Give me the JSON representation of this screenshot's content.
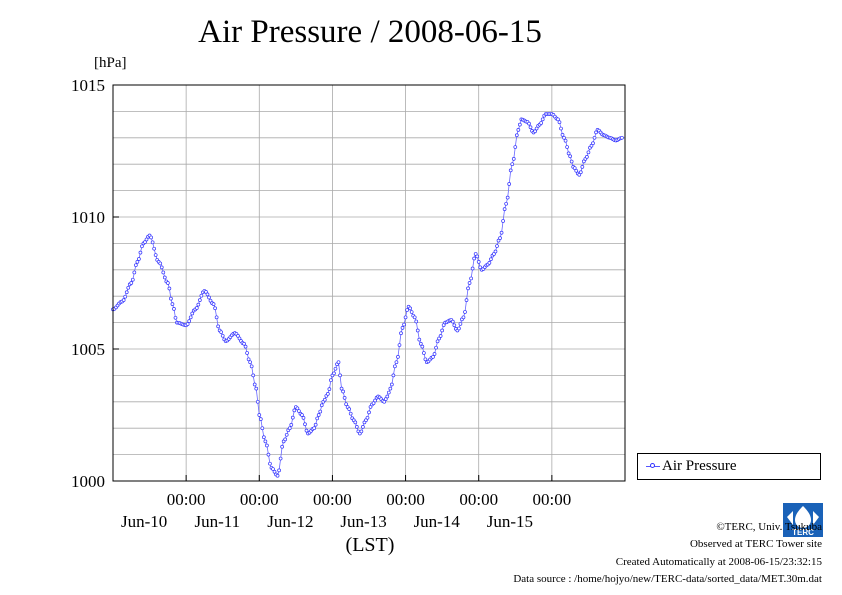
{
  "title": "Air Pressure / 2008-06-15",
  "unit_label": "[hPa]",
  "x_axis_unit": "(LST)",
  "legend": {
    "label": "Air Pressure"
  },
  "colors": {
    "series": "#3333ff",
    "grid": "#aaaaaa"
  },
  "credits": {
    "copyright": "©TERC, Univ. Tsukuba",
    "observed": "Observed at TERC Tower site",
    "created": "Created Automatically at 2008-06-15/23:32:15",
    "source": "Data source : /home/hojyo/new/TERC-data/sorted_data/MET.30m.dat"
  },
  "logo": {
    "text": "TERC",
    "icon": "terc-logo-icon"
  },
  "chart_data": {
    "type": "line",
    "xlabel": "(LST)",
    "ylabel": "[hPa]",
    "ylim": [
      1000,
      1015
    ],
    "yticks": [
      1000,
      1005,
      1010,
      1015
    ],
    "xlim_days": [
      "2008-06-09 00:00",
      "2008-06-15 24:00"
    ],
    "xticks": [
      {
        "time": "00:00",
        "day": "Jun-10"
      },
      {
        "time": "00:00",
        "day": "Jun-11"
      },
      {
        "time": "00:00",
        "day": "Jun-12"
      },
      {
        "time": "00:00",
        "day": "Jun-13"
      },
      {
        "time": "00:00",
        "day": "Jun-14"
      },
      {
        "time": "00:00",
        "day": "Jun-15"
      }
    ],
    "grid": true,
    "legend_position": "bottom-right-outside",
    "series": [
      {
        "name": "Air Pressure",
        "time_hours": [
          0,
          3,
          6,
          8,
          10,
          12,
          15,
          18,
          19.5,
          21,
          24,
          27,
          30,
          33,
          35,
          37,
          40,
          43,
          45,
          47,
          48,
          50,
          52,
          54,
          56,
          58,
          60,
          62,
          64,
          66,
          67.5,
          69,
          70.5,
          72,
          74,
          75,
          77,
          79,
          81,
          83,
          85,
          87,
          89,
          90,
          91,
          93,
          95,
          97,
          99,
          101,
          103,
          105,
          107,
          109,
          111,
          113,
          115,
          117,
          119,
          121,
          123,
          125,
          127,
          129,
          131,
          133,
          134,
          136,
          138,
          140,
          142,
          144,
          146,
          148,
          150,
          151,
          153,
          155,
          157,
          159,
          161,
          163,
          165,
          167
        ],
        "values": [
          1006.5,
          1006.8,
          1007.5,
          1008.3,
          1009.0,
          1009.3,
          1008.3,
          1007.5,
          1006.7,
          1006.0,
          1005.9,
          1006.5,
          1007.2,
          1006.7,
          1005.7,
          1005.3,
          1005.6,
          1005.2,
          1004.5,
          1003.5,
          1002.5,
          1001.5,
          1000.5,
          1000.2,
          1001.5,
          1002.0,
          1002.8,
          1002.5,
          1001.8,
          1002.0,
          1002.5,
          1003.0,
          1003.3,
          1004.0,
          1004.5,
          1003.5,
          1002.8,
          1002.3,
          1001.8,
          1002.3,
          1002.9,
          1003.2,
          1003.0,
          1003.2,
          1003.5,
          1004.5,
          1005.8,
          1006.6,
          1006.2,
          1005.2,
          1004.5,
          1004.7,
          1005.4,
          1006.0,
          1006.1,
          1005.7,
          1006.2,
          1007.5,
          1008.6,
          1008.0,
          1008.2,
          1008.6,
          1009.2,
          1010.5,
          1012.0,
          1013.3,
          1013.7,
          1013.6,
          1013.2,
          1013.5,
          1013.9,
          1013.9,
          1013.7,
          1013.0,
          1012.3,
          1011.9,
          1011.6,
          1012.2,
          1012.7,
          1013.3,
          1013.1,
          1013.0,
          1012.9,
          1013.0,
          1013.2
        ]
      }
    ]
  }
}
